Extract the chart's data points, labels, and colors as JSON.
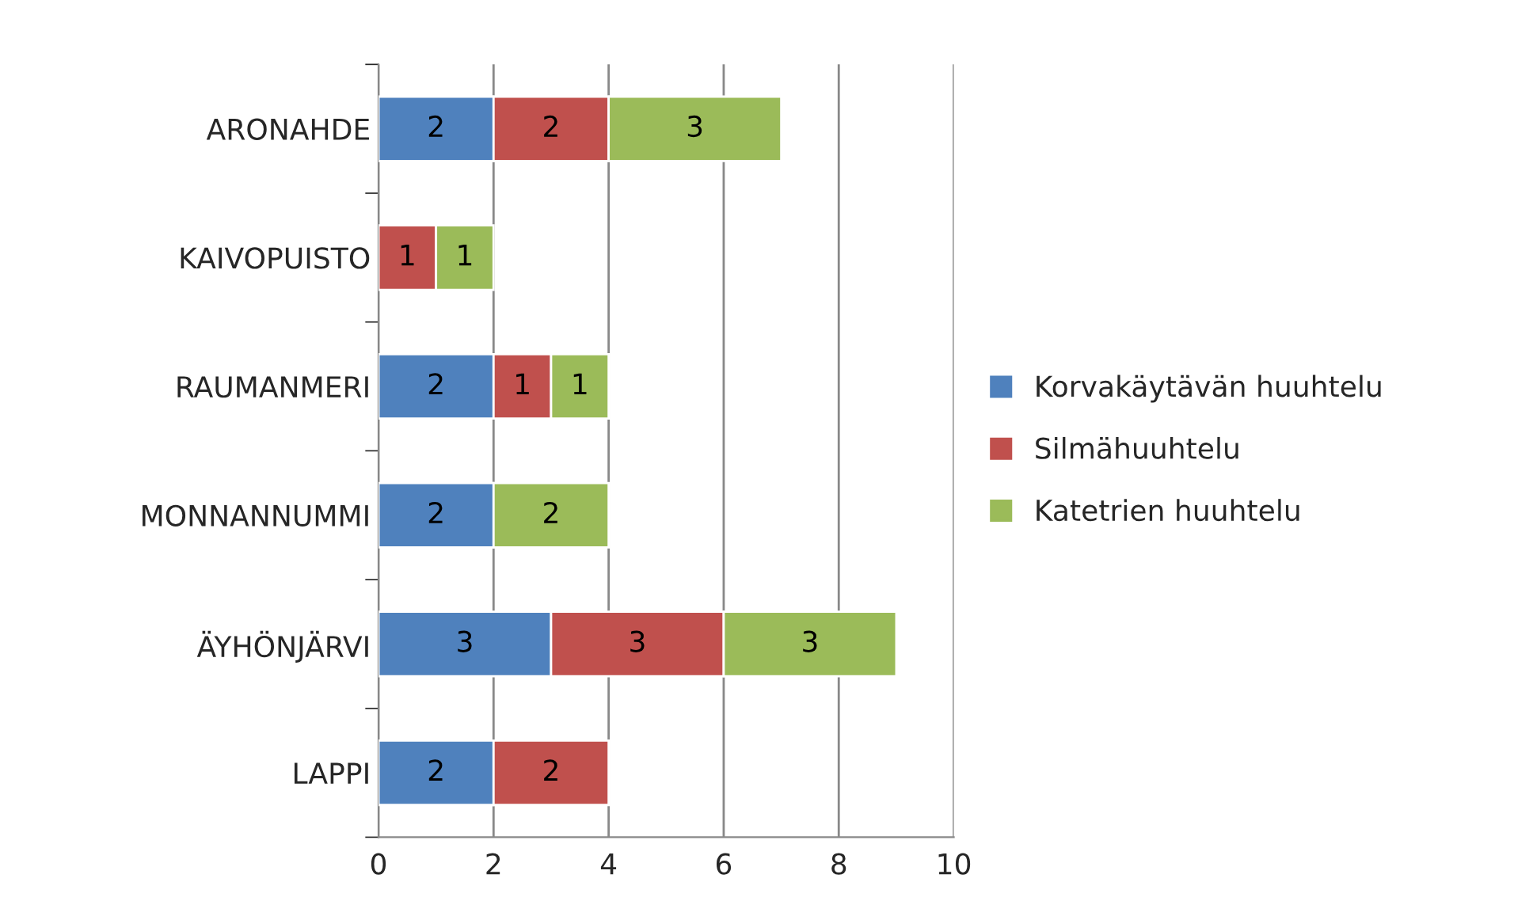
{
  "chart_data": {
    "type": "bar",
    "orientation": "horizontal",
    "stacked": true,
    "categories": [
      "ARONAHDE",
      "KAIVOPUISTO",
      "RAUMANMERI",
      "MONNANNUMMI",
      "ÄYHÖNJÄRVI",
      "LAPPI"
    ],
    "series": [
      {
        "name": "Korvakäytävän huuhtelu",
        "color": "#4f81bd",
        "values": [
          2,
          null,
          2,
          2,
          3,
          2
        ]
      },
      {
        "name": "Silmähuuhtelu",
        "color": "#c0504d",
        "values": [
          2,
          1,
          1,
          null,
          3,
          2
        ]
      },
      {
        "name": "Katetrien huuhtelu",
        "color": "#9bbb59",
        "values": [
          3,
          1,
          1,
          2,
          3,
          null
        ]
      }
    ],
    "xlim": [
      0,
      10
    ],
    "xticks": [
      0,
      2,
      4,
      6,
      8,
      10
    ],
    "grid": "x",
    "legend": "right",
    "data_labels": true
  }
}
